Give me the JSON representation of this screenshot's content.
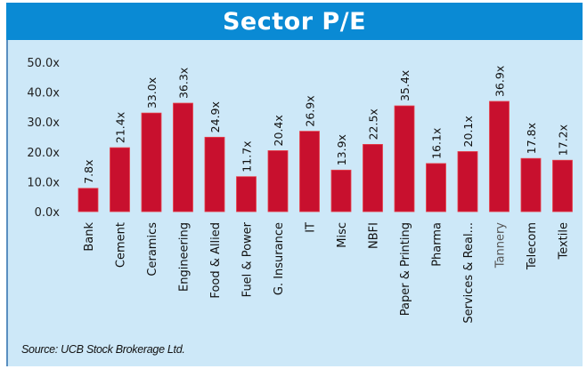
{
  "chart_data": {
    "type": "bar",
    "title": "Sector P/E",
    "xlabel": "",
    "ylabel": "",
    "ylim": [
      0,
      50
    ],
    "yticks": [
      0,
      10,
      20,
      30,
      40,
      50
    ],
    "ytick_labels": [
      "0.0x",
      "10.0x",
      "20.0x",
      "30.0x",
      "40.0x",
      "50.0x"
    ],
    "grid": false,
    "categories": [
      "Bank",
      "Cement",
      "Ceramics",
      "Engineering",
      "Food & Allied",
      "Fuel & Power",
      "G. Insurance",
      "IT",
      "Misc",
      "NBFI",
      "Paper & Printing",
      "Pharma",
      "Services & Real...",
      "Tannery",
      "Telecom",
      "Textile"
    ],
    "values": [
      7.8,
      21.4,
      33.0,
      36.3,
      24.9,
      11.7,
      20.4,
      26.9,
      13.9,
      22.5,
      35.4,
      16.1,
      20.1,
      36.9,
      17.8,
      17.2
    ],
    "data_labels": [
      "7.8x",
      "21.4x",
      "33.0x",
      "36.3x",
      "24.9x",
      "11.7x",
      "20.4x",
      "26.9x",
      "13.9x",
      "22.5x",
      "35.4x",
      "16.1x",
      "20.1x",
      "36.9x",
      "17.8x",
      "17.2x"
    ],
    "bar_color": "#c8102e",
    "source": "Source: UCB Stock Brokerage Ltd."
  },
  "colors": {
    "title_bar": "#0a8ad4",
    "background": "#cde8f8",
    "bar": "#c8102e"
  }
}
